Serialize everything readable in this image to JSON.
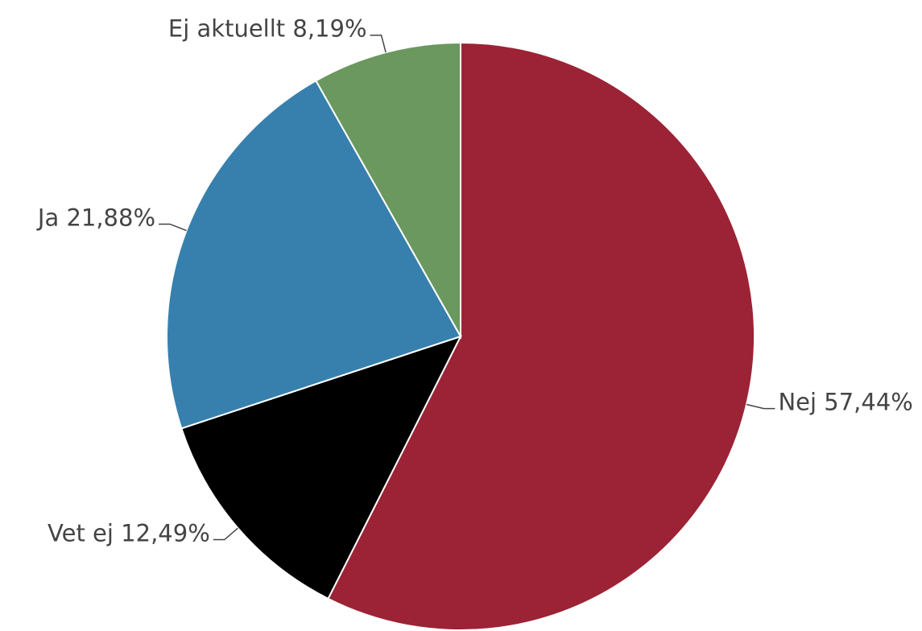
{
  "chart_data": {
    "type": "pie",
    "categories": [
      "Nej",
      "Vet ej",
      "Ja",
      "Ej aktuellt"
    ],
    "values": [
      57.44,
      12.49,
      21.88,
      8.19
    ],
    "value_labels": [
      "57,44%",
      "12,49%",
      "21,88%",
      "8,19%"
    ],
    "colors": [
      "#9b2335",
      "#000000",
      "#3780ad",
      "#6a985e"
    ]
  }
}
